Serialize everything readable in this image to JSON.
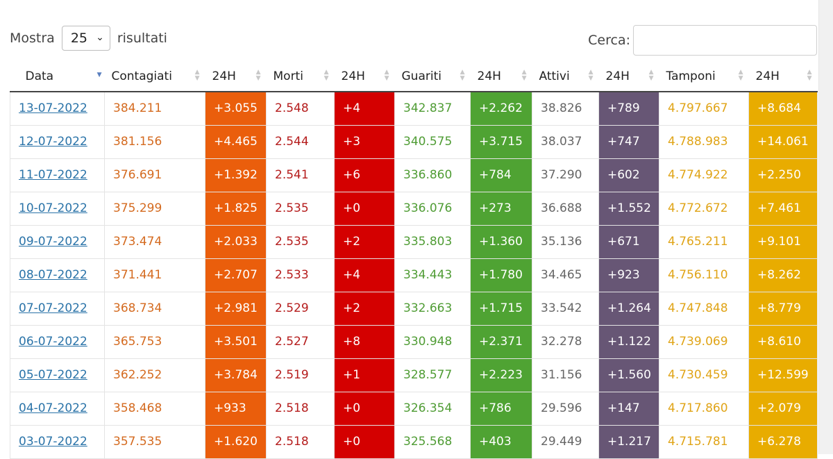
{
  "controls": {
    "show_label": "Mostra",
    "show_value": "25",
    "results_label": "risultati",
    "search_label": "Cerca:"
  },
  "colors": {
    "contagiati_24h": "#ea5e0c",
    "morti_24h": "#d40000",
    "guariti_24h": "#4fa333",
    "attivi_24h": "#675675",
    "tamponi_24h": "#e8ac00"
  },
  "headers": [
    "Data",
    "Contagiati",
    "24H",
    "Morti",
    "24H",
    "Guariti",
    "24H",
    "Attivi",
    "24H",
    "Tamponi",
    "24H"
  ],
  "rows": [
    [
      "13-07-2022",
      "384.211",
      "+3.055",
      "2.548",
      "+4",
      "342.837",
      "+2.262",
      "38.826",
      "+789",
      "4.797.667",
      "+8.684"
    ],
    [
      "12-07-2022",
      "381.156",
      "+4.465",
      "2.544",
      "+3",
      "340.575",
      "+3.715",
      "38.037",
      "+747",
      "4.788.983",
      "+14.061"
    ],
    [
      "11-07-2022",
      "376.691",
      "+1.392",
      "2.541",
      "+6",
      "336.860",
      "+784",
      "37.290",
      "+602",
      "4.774.922",
      "+2.250"
    ],
    [
      "10-07-2022",
      "375.299",
      "+1.825",
      "2.535",
      "+0",
      "336.076",
      "+273",
      "36.688",
      "+1.552",
      "4.772.672",
      "+7.461"
    ],
    [
      "09-07-2022",
      "373.474",
      "+2.033",
      "2.535",
      "+2",
      "335.803",
      "+1.360",
      "35.136",
      "+671",
      "4.765.211",
      "+9.101"
    ],
    [
      "08-07-2022",
      "371.441",
      "+2.707",
      "2.533",
      "+4",
      "334.443",
      "+1.780",
      "34.465",
      "+923",
      "4.756.110",
      "+8.262"
    ],
    [
      "07-07-2022",
      "368.734",
      "+2.981",
      "2.529",
      "+2",
      "332.663",
      "+1.715",
      "33.542",
      "+1.264",
      "4.747.848",
      "+8.779"
    ],
    [
      "06-07-2022",
      "365.753",
      "+3.501",
      "2.527",
      "+8",
      "330.948",
      "+2.371",
      "32.278",
      "+1.122",
      "4.739.069",
      "+8.610"
    ],
    [
      "05-07-2022",
      "362.252",
      "+3.784",
      "2.519",
      "+1",
      "328.577",
      "+2.223",
      "31.156",
      "+1.560",
      "4.730.459",
      "+12.599"
    ],
    [
      "04-07-2022",
      "358.468",
      "+933",
      "2.518",
      "+0",
      "326.354",
      "+786",
      "29.596",
      "+147",
      "4.717.860",
      "+2.079"
    ],
    [
      "03-07-2022",
      "357.535",
      "+1.620",
      "2.518",
      "+0",
      "325.568",
      "+403",
      "29.449",
      "+1.217",
      "4.715.781",
      "+6.278"
    ]
  ]
}
